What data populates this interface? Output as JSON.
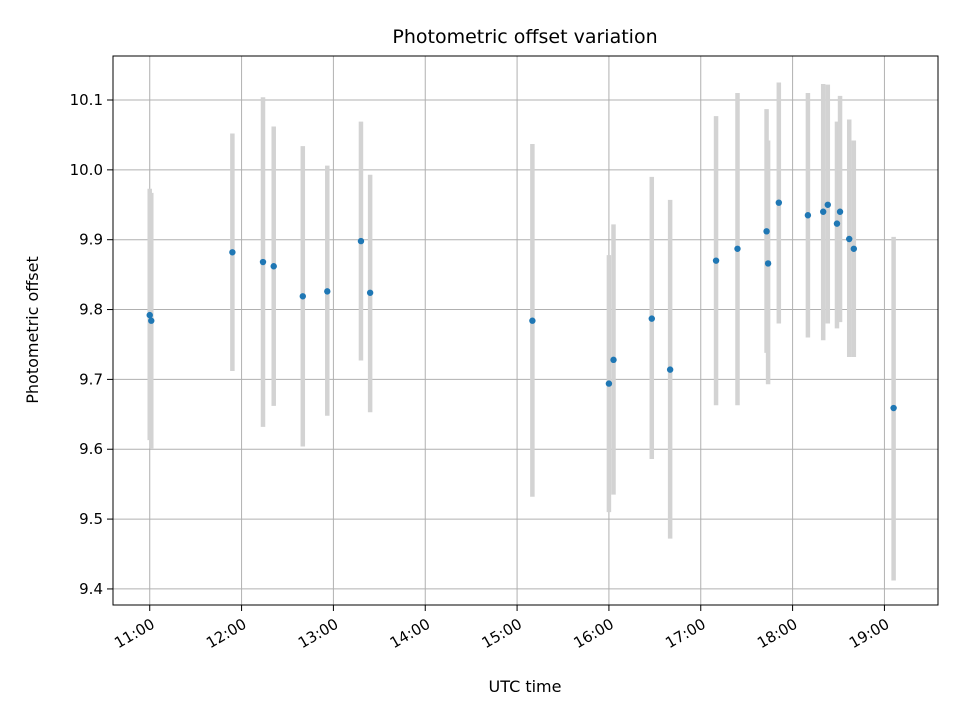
{
  "chart_data": {
    "type": "scatter",
    "title": "Photometric offset variation",
    "xlabel": "UTC time",
    "ylabel": "Photometric offset",
    "x_is_time": true,
    "xlim": [
      "10:36",
      "19:35"
    ],
    "ylim": [
      9.377,
      10.163
    ],
    "grid": true,
    "x_tick_labels": [
      "11:00",
      "12:00",
      "13:00",
      "14:00",
      "15:00",
      "16:00",
      "17:00",
      "18:00",
      "19:00"
    ],
    "y_tick_labels": [
      "9.4",
      "9.5",
      "9.6",
      "9.7",
      "9.8",
      "9.9",
      "10.0",
      "10.1"
    ],
    "point_color": "#1f77b4",
    "errorbar_color": "#d3d3d3",
    "series": [
      {
        "x": [
          "11:00",
          "11:01",
          "11:54",
          "12:14",
          "12:21",
          "12:40",
          "12:56",
          "13:18",
          "13:24",
          "15:10",
          "16:00",
          "16:03",
          "16:28",
          "16:40",
          "17:10",
          "17:24",
          "17:43",
          "17:44",
          "17:51",
          "18:10",
          "18:20",
          "18:23",
          "18:29",
          "18:31",
          "18:37",
          "18:40",
          "19:06"
        ],
        "y": [
          9.792,
          9.784,
          9.882,
          9.868,
          9.862,
          9.819,
          9.826,
          9.898,
          9.824,
          9.784,
          9.694,
          9.728,
          9.787,
          9.714,
          9.87,
          9.887,
          9.912,
          9.866,
          9.953,
          9.935,
          9.94,
          9.95,
          9.923,
          9.94,
          9.901,
          9.887,
          9.659
        ],
        "y_lower": [
          9.613,
          9.601,
          9.712,
          9.632,
          9.662,
          9.604,
          9.648,
          9.727,
          9.653,
          9.532,
          9.51,
          9.535,
          9.586,
          9.472,
          9.663,
          9.663,
          9.738,
          9.693,
          9.78,
          9.76,
          9.756,
          9.78,
          9.773,
          9.782,
          9.732,
          9.732,
          9.412
        ],
        "y_upper": [
          9.973,
          9.967,
          10.052,
          10.104,
          10.062,
          10.034,
          10.006,
          10.069,
          9.993,
          10.037,
          9.878,
          9.922,
          9.99,
          9.957,
          10.077,
          10.11,
          10.087,
          10.042,
          10.125,
          10.11,
          10.123,
          10.122,
          10.069,
          10.106,
          10.072,
          10.042,
          9.904
        ]
      }
    ]
  }
}
